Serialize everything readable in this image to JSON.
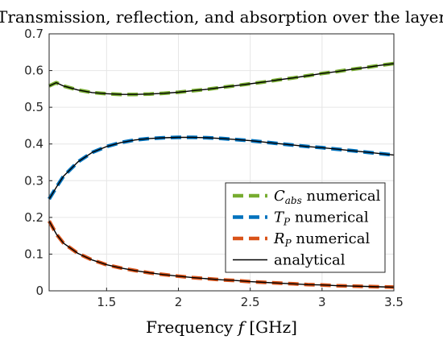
{
  "chart_data": {
    "type": "line",
    "title": "Transmission, reflection, and absorption over the layer",
    "xlabel": "Frequency f [GHz]",
    "ylabel": "",
    "xlim": [
      1.1,
      3.5
    ],
    "ylim": [
      0,
      0.7
    ],
    "xticks": [
      1.5,
      2,
      2.5,
      3,
      3.5
    ],
    "xtick_labels": [
      "1.5",
      "2",
      "2.5",
      "3",
      "3.5"
    ],
    "yticks": [
      0,
      0.1,
      0.2,
      0.3,
      0.4,
      0.5,
      0.6,
      0.7
    ],
    "ytick_labels": [
      "0",
      "0.1",
      "0.2",
      "0.3",
      "0.4",
      "0.5",
      "0.6",
      "0.7"
    ],
    "grid": true,
    "legend_position": "bottom-right",
    "x": [
      1.1,
      1.15,
      1.2,
      1.3,
      1.4,
      1.5,
      1.6,
      1.7,
      1.8,
      1.9,
      2.0,
      2.1,
      2.2,
      2.3,
      2.4,
      2.5,
      2.6,
      2.7,
      2.8,
      2.9,
      3.0,
      3.1,
      3.2,
      3.3,
      3.4,
      3.5
    ],
    "series": [
      {
        "name": "C abs numerical",
        "symbol": "C",
        "subscript": "abs",
        "suffix": " numerical",
        "color": "#77ac30",
        "style": "dashed",
        "values": [
          0.558,
          0.567,
          0.558,
          0.547,
          0.54,
          0.537,
          0.535,
          0.535,
          0.536,
          0.538,
          0.541,
          0.545,
          0.549,
          0.554,
          0.559,
          0.564,
          0.569,
          0.575,
          0.58,
          0.586,
          0.592,
          0.597,
          0.603,
          0.608,
          0.614,
          0.619
        ]
      },
      {
        "name": "T P numerical",
        "symbol": "T",
        "subscript": "P",
        "suffix": " numerical",
        "color": "#0072bd",
        "style": "dashed",
        "values": [
          0.25,
          0.282,
          0.312,
          0.351,
          0.377,
          0.393,
          0.404,
          0.411,
          0.415,
          0.417,
          0.418,
          0.418,
          0.417,
          0.415,
          0.412,
          0.409,
          0.405,
          0.401,
          0.397,
          0.393,
          0.39,
          0.386,
          0.382,
          0.378,
          0.374,
          0.37
        ]
      },
      {
        "name": "R P numerical",
        "symbol": "R",
        "subscript": "P",
        "suffix": " numerical",
        "color": "#d95319",
        "style": "dashed",
        "values": [
          0.19,
          0.155,
          0.13,
          0.102,
          0.084,
          0.071,
          0.062,
          0.055,
          0.049,
          0.044,
          0.04,
          0.036,
          0.033,
          0.03,
          0.028,
          0.025,
          0.023,
          0.021,
          0.019,
          0.017,
          0.016,
          0.014,
          0.013,
          0.012,
          0.011,
          0.01
        ]
      },
      {
        "name": "analytical",
        "color": "#000000",
        "style": "solid"
      }
    ]
  }
}
